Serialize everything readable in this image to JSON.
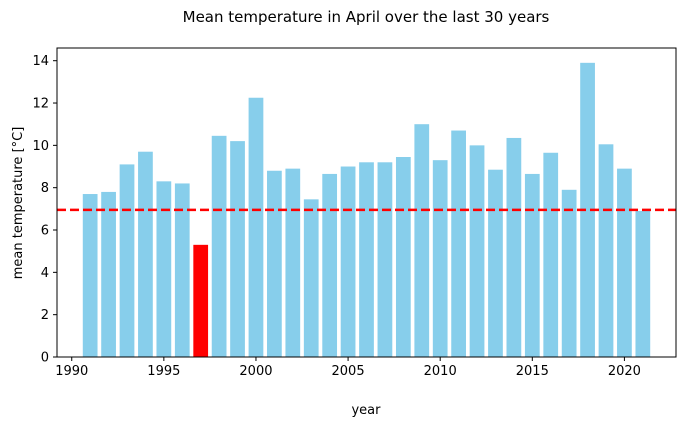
{
  "chart_data": {
    "type": "bar",
    "title": "Mean temperature in April over the last 30 years",
    "xlabel": "year",
    "ylabel": "mean temperature [°C]",
    "xlim": [
      1989.2,
      2022.8
    ],
    "ylim": [
      0,
      14.6
    ],
    "x_ticks": [
      1990,
      1995,
      2000,
      2005,
      2010,
      2015,
      2020
    ],
    "y_ticks": [
      0,
      2,
      4,
      6,
      8,
      10,
      12,
      14
    ],
    "grid": false,
    "legend": "none",
    "colors": {
      "bar": "#87ceeb",
      "highlight": "#ff0000",
      "reference_line": "#ff0000"
    },
    "x": [
      1991,
      1992,
      1993,
      1994,
      1995,
      1996,
      1997,
      1998,
      1999,
      2000,
      2001,
      2002,
      2003,
      2004,
      2005,
      2006,
      2007,
      2008,
      2009,
      2010,
      2011,
      2012,
      2013,
      2014,
      2015,
      2016,
      2017,
      2018,
      2019,
      2020,
      2021
    ],
    "values": [
      7.7,
      7.8,
      9.1,
      9.7,
      8.3,
      8.2,
      5.3,
      10.45,
      10.2,
      12.25,
      8.8,
      8.9,
      7.45,
      8.65,
      9.0,
      9.2,
      9.2,
      9.45,
      11.0,
      9.3,
      10.7,
      10.0,
      8.85,
      10.35,
      8.65,
      9.65,
      7.9,
      13.9,
      10.05,
      8.9,
      6.9
    ],
    "highlight": [
      1997
    ],
    "reference_line": {
      "y": 6.95,
      "style": "dashed"
    }
  }
}
